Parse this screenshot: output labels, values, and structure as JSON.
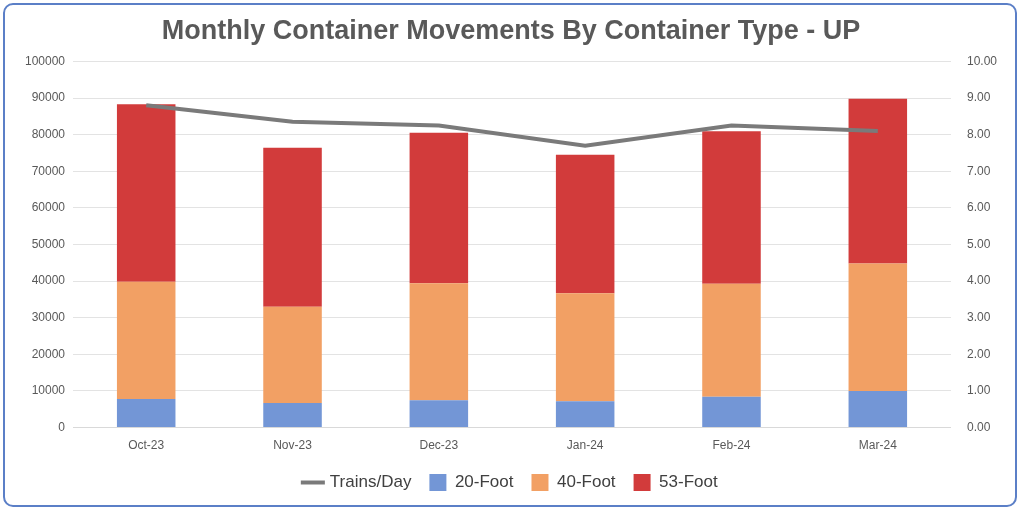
{
  "chart_data": {
    "type": "bar",
    "title": "Monthly Container Movements By Container Type - UP",
    "categories": [
      "Oct-23",
      "Nov-23",
      "Dec-23",
      "Jan-24",
      "Feb-24",
      "Mar-24"
    ],
    "stacked": true,
    "grid": true,
    "legend": "bottom",
    "series": [
      {
        "name": "20-Foot",
        "type": "bar",
        "color": "#7396d6",
        "values": [
          7800,
          6700,
          7500,
          7200,
          8400,
          10000
        ]
      },
      {
        "name": "40-Foot",
        "type": "bar",
        "color": "#f2a064",
        "values": [
          32000,
          26300,
          31900,
          29500,
          30900,
          34800
        ]
      },
      {
        "name": "53-Foot",
        "type": "bar",
        "color": "#d23b3b",
        "values": [
          48500,
          43400,
          41100,
          37800,
          41600,
          45000
        ]
      },
      {
        "name": "Trains/Day",
        "type": "line",
        "axis": "y2",
        "color": "#7a7a7a",
        "values": [
          8.8,
          8.35,
          8.25,
          7.7,
          8.25,
          8.1
        ]
      }
    ],
    "ylim": [
      0,
      100000
    ],
    "yticks": [
      0,
      10000,
      20000,
      30000,
      40000,
      50000,
      60000,
      70000,
      80000,
      90000,
      100000
    ],
    "y2lim": [
      0,
      10
    ],
    "y2ticks": [
      {
        "value": 0,
        "label": "0.00"
      },
      {
        "value": 1,
        "label": "1.00"
      },
      {
        "value": 2,
        "label": "2.00"
      },
      {
        "value": 3,
        "label": "3.00"
      },
      {
        "value": 4,
        "label": "4.00"
      },
      {
        "value": 5,
        "label": "5.00"
      },
      {
        "value": 6,
        "label": "6.00"
      },
      {
        "value": 7,
        "label": "7.00"
      },
      {
        "value": 8,
        "label": "8.00"
      },
      {
        "value": 9,
        "label": "9.00"
      },
      {
        "value": 10,
        "label": "10.00"
      }
    ]
  }
}
